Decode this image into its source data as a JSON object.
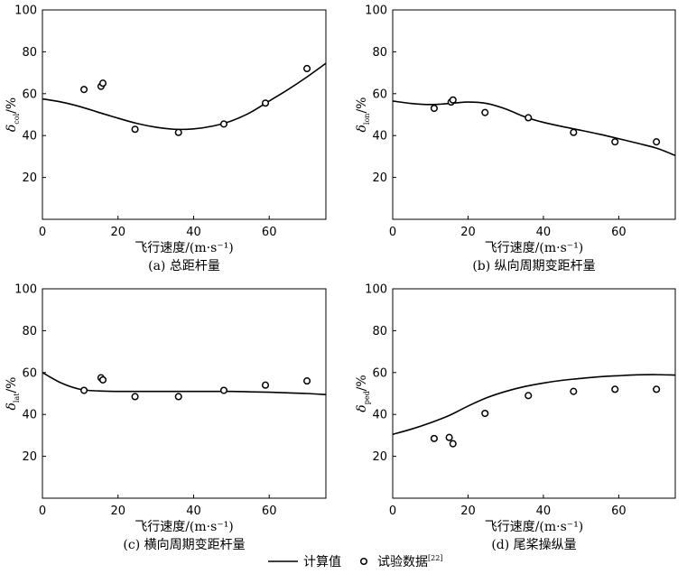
{
  "chart_data": [
    {
      "type": "line",
      "caption": "(a) 总距杆量",
      "xlabel": "飞行速度/(m·s⁻¹)",
      "ylabel_symbol": "δ",
      "ylabel_sub": "col",
      "ylabel_unit": "/%",
      "xlim": [
        0,
        75
      ],
      "ylim": [
        0,
        100
      ],
      "xticks": [
        0,
        20,
        40,
        60
      ],
      "yticks": [
        20,
        40,
        60,
        80,
        100
      ],
      "series": [
        {
          "name": "计算值",
          "kind": "line",
          "x": [
            0,
            5,
            10,
            15,
            20,
            25,
            30,
            35,
            40,
            45,
            50,
            55,
            60,
            65,
            70,
            75
          ],
          "y": [
            57.5,
            56,
            53.8,
            51,
            48.3,
            45.8,
            44,
            43,
            43.2,
            44.5,
            47,
            51,
            56.5,
            62,
            68,
            74.5
          ]
        },
        {
          "name": "试验数据",
          "kind": "scatter",
          "x": [
            11,
            15.5,
            16,
            24.5,
            36,
            48,
            59,
            70
          ],
          "y": [
            62,
            63.5,
            65,
            43,
            41.5,
            45.5,
            55.5,
            72
          ]
        }
      ]
    },
    {
      "type": "line",
      "caption": "(b) 纵向周期变距杆量",
      "xlabel": "飞行速度/(m·s⁻¹)",
      "ylabel_symbol": "δ",
      "ylabel_sub": "lon",
      "ylabel_unit": "/%",
      "xlim": [
        0,
        75
      ],
      "ylim": [
        0,
        100
      ],
      "xticks": [
        0,
        20,
        40,
        60
      ],
      "yticks": [
        20,
        40,
        60,
        80,
        100
      ],
      "series": [
        {
          "name": "计算值",
          "kind": "line",
          "x": [
            0,
            5,
            10,
            15,
            20,
            25,
            30,
            35,
            40,
            45,
            50,
            55,
            60,
            65,
            70,
            75
          ],
          "y": [
            56.5,
            55.3,
            54.8,
            55.3,
            56,
            55.3,
            52.7,
            49,
            46.3,
            44.3,
            42.5,
            40.6,
            38.5,
            36.3,
            34,
            30.5
          ]
        },
        {
          "name": "试验数据",
          "kind": "scatter",
          "x": [
            11,
            15.5,
            16,
            24.5,
            36,
            48,
            59,
            70
          ],
          "y": [
            53,
            56,
            57,
            51,
            48.5,
            41.5,
            37,
            37
          ]
        }
      ]
    },
    {
      "type": "line",
      "caption": "(c) 横向周期变距杆量",
      "xlabel": "飞行速度/(m·s⁻¹)",
      "ylabel_symbol": "δ",
      "ylabel_sub": "lat",
      "ylabel_unit": "/%",
      "xlim": [
        0,
        75
      ],
      "ylim": [
        0,
        100
      ],
      "xticks": [
        0,
        20,
        40,
        60
      ],
      "yticks": [
        20,
        40,
        60,
        80,
        100
      ],
      "series": [
        {
          "name": "计算值",
          "kind": "line",
          "x": [
            0,
            5,
            10,
            15,
            20,
            25,
            30,
            35,
            40,
            45,
            50,
            55,
            60,
            65,
            70,
            75
          ],
          "y": [
            60,
            55,
            52,
            51.2,
            51,
            51,
            51,
            51,
            51,
            51,
            51,
            50.8,
            50.6,
            50.3,
            50,
            49.5
          ]
        },
        {
          "name": "试验数据",
          "kind": "scatter",
          "x": [
            11,
            15.5,
            16,
            24.5,
            36,
            48,
            59,
            70
          ],
          "y": [
            51.5,
            57.5,
            56.5,
            48.5,
            48.5,
            51.5,
            54,
            56
          ]
        }
      ]
    },
    {
      "type": "line",
      "caption": "(d) 尾桨操纵量",
      "xlabel": "飞行速度/(m·s⁻¹)",
      "ylabel_symbol": "δ",
      "ylabel_sub": "ped",
      "ylabel_unit": "/%",
      "xlim": [
        0,
        75
      ],
      "ylim": [
        0,
        100
      ],
      "xticks": [
        0,
        20,
        40,
        60
      ],
      "yticks": [
        20,
        40,
        60,
        80,
        100
      ],
      "series": [
        {
          "name": "计算值",
          "kind": "line",
          "x": [
            0,
            5,
            10,
            15,
            20,
            25,
            30,
            35,
            40,
            45,
            50,
            55,
            60,
            65,
            70,
            75
          ],
          "y": [
            30.5,
            33,
            36,
            39.5,
            44,
            48,
            51,
            53.3,
            55,
            56.3,
            57.2,
            58,
            58.5,
            58.9,
            59,
            58.8
          ]
        },
        {
          "name": "试验数据",
          "kind": "scatter",
          "x": [
            11,
            15,
            16,
            24.5,
            36,
            48,
            59,
            70
          ],
          "y": [
            28.5,
            29,
            26,
            40.5,
            49,
            51,
            52,
            52
          ]
        }
      ]
    }
  ],
  "legend": {
    "line_label": "计算值",
    "marker_label": "试验数据",
    "marker_ref": "[22]"
  },
  "colors": {
    "ink": "#000000",
    "background": "#ffffff"
  }
}
